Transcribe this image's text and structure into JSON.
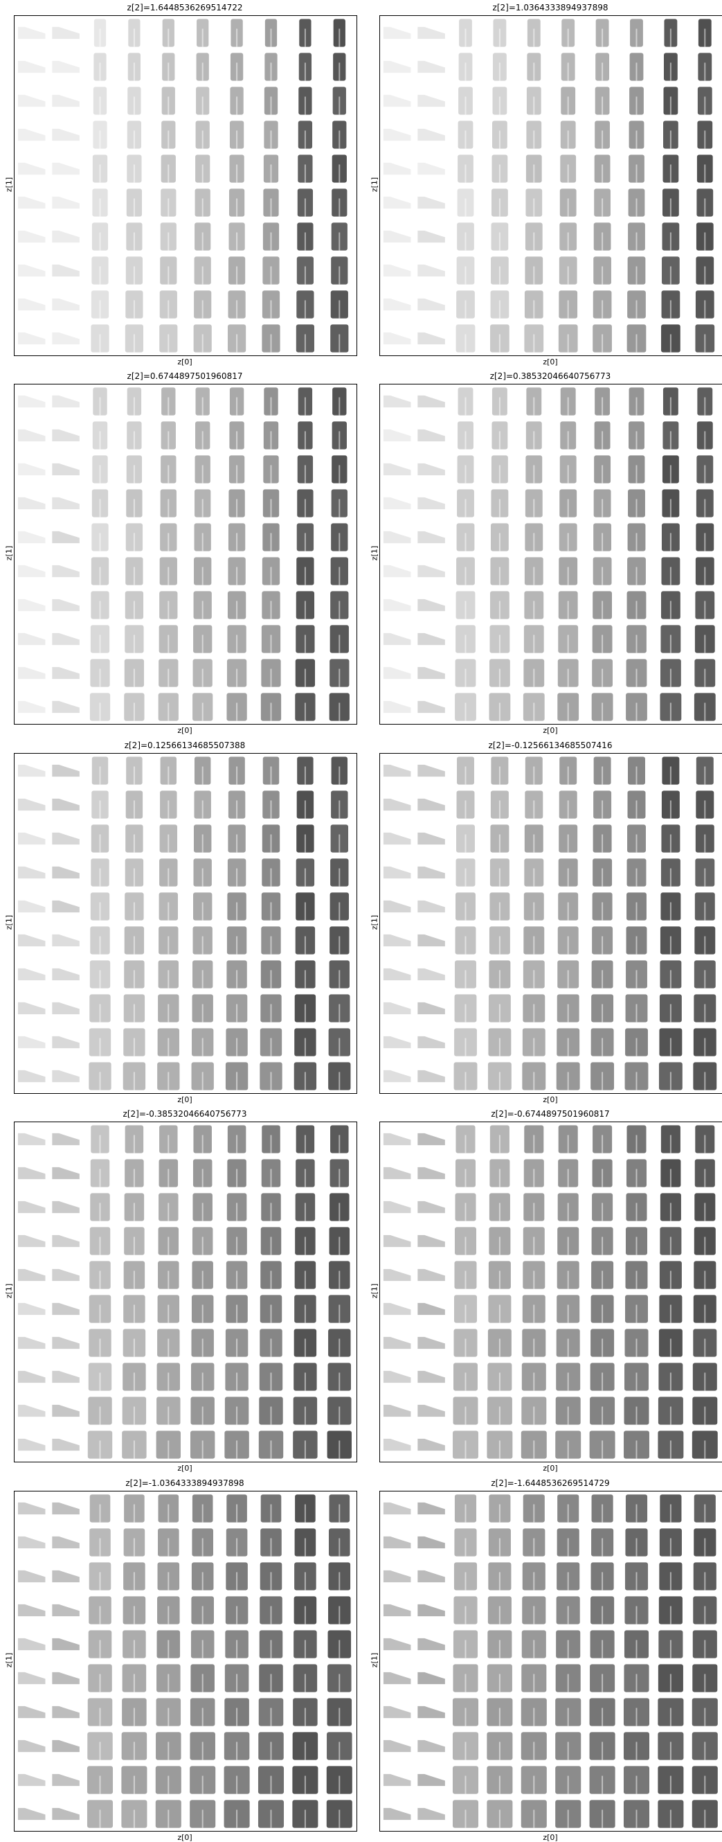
{
  "figure": {
    "x_label": "z[0]",
    "y_label": "z[1]",
    "grid_cols": 10,
    "grid_rows": 10,
    "description_colors": {
      "background": "#ffffff",
      "ink": "#000000"
    }
  },
  "panels": [
    {
      "title": "z[2]=1.6448536269514722"
    },
    {
      "title": "z[2]=1.0364333894937898"
    },
    {
      "title": "z[2]=0.6744897501960817"
    },
    {
      "title": "z[2]=0.38532046640756773"
    },
    {
      "title": "z[2]=0.12566134685507388"
    },
    {
      "title": "z[2]=-0.12566134685507416"
    },
    {
      "title": "z[2]=-0.38532046640756773"
    },
    {
      "title": "z[2]=-0.6744897501960817"
    },
    {
      "title": "z[2]=-1.0364333894937898"
    },
    {
      "title": "z[2]=-1.6448536269514729"
    }
  ]
}
